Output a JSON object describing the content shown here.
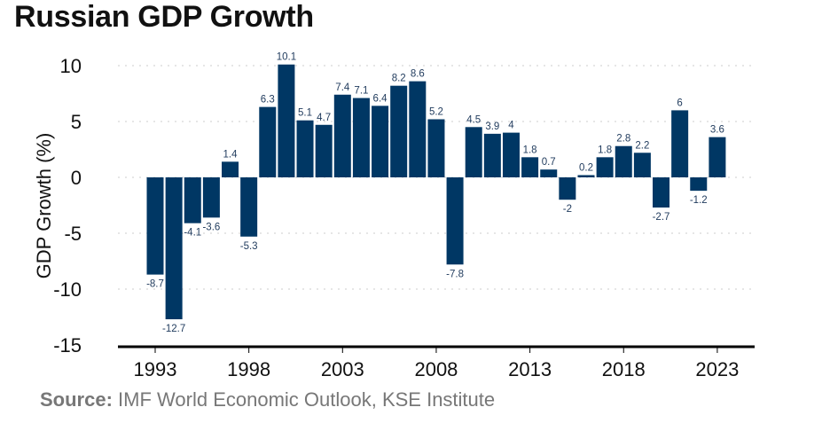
{
  "chart_data": {
    "type": "bar",
    "title": "Russian GDP Growth",
    "xlabel": "",
    "ylabel": "GDP Growth (%)",
    "ylim": [
      -15,
      12
    ],
    "yticks": [
      10,
      5,
      0,
      -5,
      -10,
      -15
    ],
    "xticks": [
      1993,
      1998,
      2003,
      2008,
      2013,
      2018,
      2023
    ],
    "grid": "horizontal dotted",
    "categories": [
      1993,
      1994,
      1995,
      1996,
      1997,
      1998,
      1999,
      2000,
      2001,
      2002,
      2003,
      2004,
      2005,
      2006,
      2007,
      2008,
      2009,
      2010,
      2011,
      2012,
      2013,
      2014,
      2015,
      2016,
      2017,
      2018,
      2019,
      2020,
      2021,
      2022,
      2023
    ],
    "values": [
      -8.7,
      -12.7,
      -4.1,
      -3.6,
      1.4,
      -5.3,
      6.3,
      10.1,
      5.1,
      4.7,
      7.4,
      7.1,
      6.4,
      8.2,
      8.6,
      5.2,
      -7.8,
      4.5,
      3.9,
      4,
      1.8,
      0.7,
      -2,
      0.2,
      1.8,
      2.8,
      2.2,
      -2.7,
      6,
      -1.2,
      3.6
    ],
    "bar_color": "#003764"
  },
  "source": {
    "label": "Source:",
    "text": "IMF World  Economic  Outlook,  KSE Institute"
  }
}
